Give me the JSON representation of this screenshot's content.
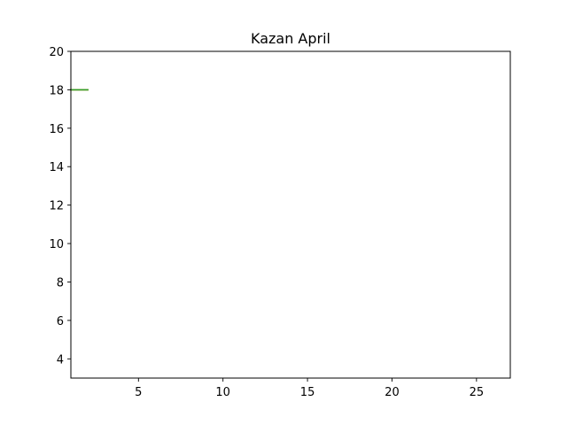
{
  "chart_data": {
    "type": "line",
    "title": "Kazan April",
    "xlabel": "",
    "ylabel": "",
    "xlim": [
      1,
      27
    ],
    "ylim": [
      3,
      20
    ],
    "x_ticks": [
      5,
      10,
      15,
      20,
      25
    ],
    "y_ticks": [
      4,
      6,
      8,
      10,
      12,
      14,
      16,
      18,
      20
    ],
    "grid": false,
    "series": [
      {
        "x": [
          1,
          2
        ],
        "y": [
          18,
          18
        ],
        "color": "#ff7f0e"
      },
      {
        "x": [
          1,
          2
        ],
        "y": [
          18,
          18
        ],
        "color": "#2ca02c"
      }
    ]
  }
}
